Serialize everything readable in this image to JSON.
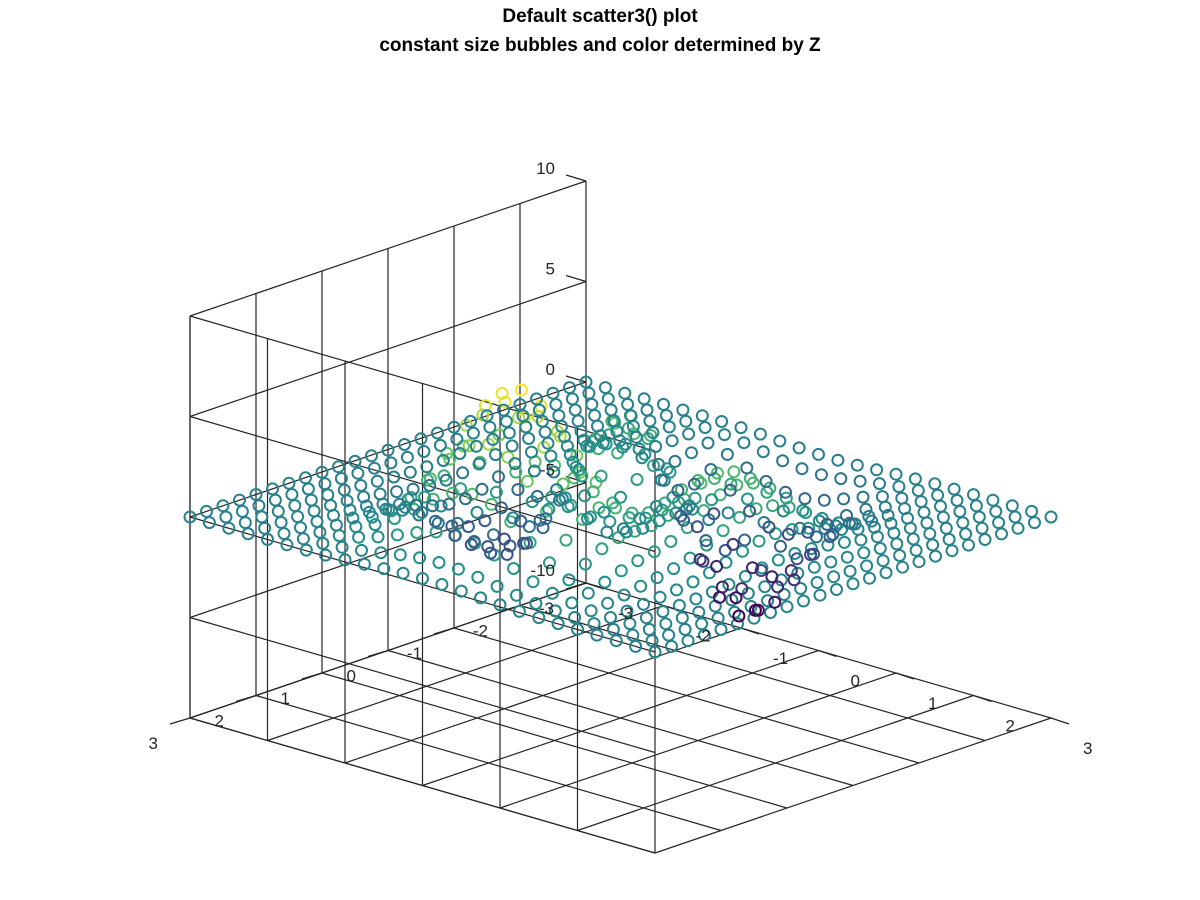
{
  "chart_data": {
    "type": "scatter3",
    "title": [
      "Default scatter3() plot",
      "constant size bubbles and color determined by Z"
    ],
    "xlabel": "",
    "ylabel": "",
    "zlabel": "",
    "xlim": [
      -3,
      3
    ],
    "ylim": [
      -3,
      3
    ],
    "zlim": [
      -10,
      10
    ],
    "x_ticks": [
      "-3",
      "-2",
      "-1",
      "0",
      "1",
      "2",
      "3"
    ],
    "y_ticks": [
      "-3",
      "-2",
      "-1",
      "0",
      "1",
      "2",
      "3"
    ],
    "z_ticks": [
      "-10",
      "-5",
      "0",
      "5",
      "10"
    ],
    "grid": true,
    "view": {
      "azimuth": -37.5,
      "elevation": 30
    },
    "marker": "o",
    "marker_size": "constant",
    "colormap": "viridis",
    "color_by": "z",
    "surface": "z = peaks(x, y)",
    "grid_points": {
      "x_range": [
        -3,
        3
      ],
      "y_range": [
        -3,
        3
      ],
      "count_per_axis": 25
    },
    "notable_values": {
      "z_max": 8.1,
      "z_min": -6.5
    }
  },
  "colors": {
    "background": "#ffffff",
    "axes": "#262626",
    "title": "#000000",
    "viridis": [
      "#440154",
      "#3b528b",
      "#21918c",
      "#5ec962",
      "#fde725"
    ]
  }
}
